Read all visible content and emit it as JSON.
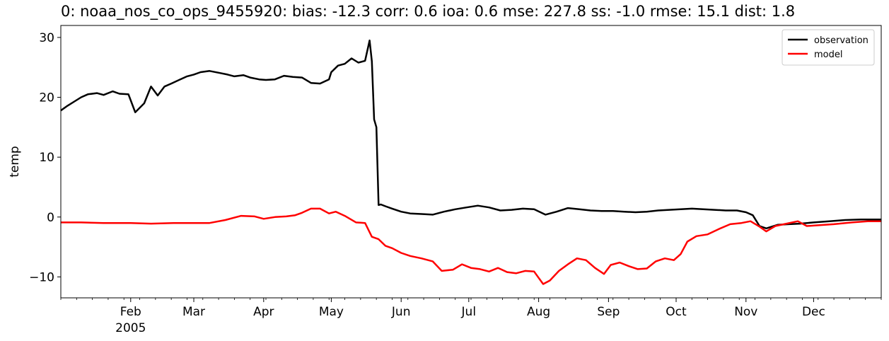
{
  "chart_data": {
    "type": "line",
    "title": "0: noaa_nos_co_ops_9455920: bias: -12.3  corr: 0.6  ioa: 0.6  mse: 227.8  ss: -1.0  rmse: 15.1  dist: 1.8",
    "xlabel": "",
    "ylabel": "temp",
    "xlim": [
      "2005-01-01",
      "2005-12-31"
    ],
    "ylim": [
      -13.5,
      32
    ],
    "yticks": [
      -10,
      0,
      10,
      20,
      30
    ],
    "ytick_labels": [
      "−10",
      "0",
      "10",
      "20",
      "30"
    ],
    "xticks": [
      {
        "date": "2005-02-01",
        "label": "Feb",
        "sublabel": "2005"
      },
      {
        "date": "2005-03-01",
        "label": "Mar"
      },
      {
        "date": "2005-04-01",
        "label": "Apr"
      },
      {
        "date": "2005-05-01",
        "label": "May"
      },
      {
        "date": "2005-06-01",
        "label": "Jun"
      },
      {
        "date": "2005-07-01",
        "label": "Jul"
      },
      {
        "date": "2005-08-01",
        "label": "Aug"
      },
      {
        "date": "2005-09-01",
        "label": "Sep"
      },
      {
        "date": "2005-10-01",
        "label": "Oct"
      },
      {
        "date": "2005-11-01",
        "label": "Nov"
      },
      {
        "date": "2005-12-01",
        "label": "Dec"
      }
    ],
    "grid": false,
    "legend_position": "top-right",
    "series": [
      {
        "name": "observation",
        "color": "#000000",
        "x": [
          "2005-01-01",
          "2005-01-04",
          "2005-01-07",
          "2005-01-10",
          "2005-01-13",
          "2005-01-17",
          "2005-01-20",
          "2005-01-24",
          "2005-01-27",
          "2005-01-31",
          "2005-02-03",
          "2005-02-07",
          "2005-02-10",
          "2005-02-13",
          "2005-02-16",
          "2005-02-19",
          "2005-02-23",
          "2005-02-26",
          "2005-03-01",
          "2005-03-04",
          "2005-03-08",
          "2005-03-12",
          "2005-03-16",
          "2005-03-19",
          "2005-03-23",
          "2005-03-26",
          "2005-03-30",
          "2005-04-02",
          "2005-04-06",
          "2005-04-10",
          "2005-04-14",
          "2005-04-18",
          "2005-04-22",
          "2005-04-26",
          "2005-04-30",
          "2005-05-01",
          "2005-05-04",
          "2005-05-07",
          "2005-05-10",
          "2005-05-13",
          "2005-05-16",
          "2005-05-18",
          "2005-05-19",
          "2005-05-20",
          "2005-05-21",
          "2005-05-22",
          "2005-05-23",
          "2005-05-25",
          "2005-05-28",
          "2005-06-01",
          "2005-06-05",
          "2005-06-10",
          "2005-06-15",
          "2005-06-20",
          "2005-06-25",
          "2005-06-30",
          "2005-07-05",
          "2005-07-10",
          "2005-07-15",
          "2005-07-20",
          "2005-07-25",
          "2005-07-30",
          "2005-08-04",
          "2005-08-09",
          "2005-08-14",
          "2005-08-19",
          "2005-08-24",
          "2005-08-29",
          "2005-09-03",
          "2005-09-08",
          "2005-09-13",
          "2005-09-18",
          "2005-09-23",
          "2005-09-28",
          "2005-10-03",
          "2005-10-08",
          "2005-10-13",
          "2005-10-18",
          "2005-10-23",
          "2005-10-28",
          "2005-11-01",
          "2005-11-04",
          "2005-11-07",
          "2005-11-10",
          "2005-11-15",
          "2005-11-20",
          "2005-11-25",
          "2005-12-01",
          "2005-12-08",
          "2005-12-15",
          "2005-12-22",
          "2005-12-31"
        ],
        "values": [
          17.8,
          18.6,
          19.3,
          20.0,
          20.5,
          20.7,
          20.4,
          21.0,
          20.6,
          20.5,
          17.5,
          19.0,
          21.8,
          20.3,
          21.8,
          22.3,
          23.0,
          23.5,
          23.8,
          24.2,
          24.4,
          24.1,
          23.8,
          23.5,
          23.7,
          23.3,
          23.0,
          22.9,
          23.0,
          23.6,
          23.4,
          23.3,
          22.4,
          22.3,
          23.0,
          24.2,
          25.3,
          25.6,
          26.5,
          25.8,
          26.1,
          29.5,
          26.0,
          16.3,
          15.0,
          2.0,
          2.1,
          1.8,
          1.4,
          0.9,
          0.6,
          0.5,
          0.4,
          0.9,
          1.3,
          1.6,
          1.9,
          1.6,
          1.1,
          1.2,
          1.4,
          1.3,
          0.4,
          0.9,
          1.5,
          1.3,
          1.1,
          1.0,
          1.0,
          0.9,
          0.8,
          0.9,
          1.1,
          1.2,
          1.3,
          1.4,
          1.3,
          1.2,
          1.1,
          1.1,
          0.8,
          0.3,
          -1.5,
          -1.9,
          -1.3,
          -1.2,
          -1.1,
          -0.9,
          -0.7,
          -0.5,
          -0.4,
          -0.4
        ]
      },
      {
        "name": "model",
        "color": "#ff0000",
        "x": [
          "2005-01-01",
          "2005-01-10",
          "2005-01-20",
          "2005-02-01",
          "2005-02-10",
          "2005-02-20",
          "2005-03-01",
          "2005-03-08",
          "2005-03-15",
          "2005-03-22",
          "2005-03-28",
          "2005-04-01",
          "2005-04-06",
          "2005-04-11",
          "2005-04-15",
          "2005-04-18",
          "2005-04-22",
          "2005-04-26",
          "2005-04-30",
          "2005-05-03",
          "2005-05-07",
          "2005-05-12",
          "2005-05-16",
          "2005-05-19",
          "2005-05-22",
          "2005-05-25",
          "2005-05-28",
          "2005-06-01",
          "2005-06-05",
          "2005-06-10",
          "2005-06-15",
          "2005-06-19",
          "2005-06-24",
          "2005-06-28",
          "2005-07-02",
          "2005-07-06",
          "2005-07-10",
          "2005-07-14",
          "2005-07-18",
          "2005-07-22",
          "2005-07-26",
          "2005-07-30",
          "2005-08-03",
          "2005-08-06",
          "2005-08-10",
          "2005-08-14",
          "2005-08-18",
          "2005-08-22",
          "2005-08-26",
          "2005-08-30",
          "2005-09-02",
          "2005-09-06",
          "2005-09-10",
          "2005-09-14",
          "2005-09-18",
          "2005-09-22",
          "2005-09-26",
          "2005-09-30",
          "2005-10-03",
          "2005-10-06",
          "2005-10-10",
          "2005-10-15",
          "2005-10-20",
          "2005-10-25",
          "2005-10-30",
          "2005-11-03",
          "2005-11-07",
          "2005-11-10",
          "2005-11-14",
          "2005-11-19",
          "2005-11-24",
          "2005-11-28",
          "2005-12-02",
          "2005-12-10",
          "2005-12-18",
          "2005-12-25",
          "2005-12-31"
        ],
        "values": [
          -0.9,
          -0.9,
          -1.0,
          -1.0,
          -1.1,
          -1.0,
          -1.0,
          -1.0,
          -0.5,
          0.2,
          0.1,
          -0.3,
          0.0,
          0.1,
          0.3,
          0.7,
          1.4,
          1.4,
          0.6,
          0.9,
          0.2,
          -0.9,
          -1.0,
          -3.3,
          -3.7,
          -4.8,
          -5.2,
          -6.0,
          -6.5,
          -6.9,
          -7.4,
          -9.0,
          -8.8,
          -7.9,
          -8.5,
          -8.7,
          -9.1,
          -8.5,
          -9.2,
          -9.4,
          -9.0,
          -9.1,
          -11.2,
          -10.6,
          -9.0,
          -7.9,
          -6.9,
          -7.2,
          -8.5,
          -9.5,
          -8.0,
          -7.6,
          -8.2,
          -8.7,
          -8.6,
          -7.4,
          -6.9,
          -7.2,
          -6.2,
          -4.1,
          -3.2,
          -2.9,
          -2.0,
          -1.2,
          -1.0,
          -0.7,
          -1.6,
          -2.4,
          -1.5,
          -1.1,
          -0.7,
          -1.5,
          -1.4,
          -1.2,
          -0.9,
          -0.7,
          -0.7
        ]
      }
    ]
  }
}
